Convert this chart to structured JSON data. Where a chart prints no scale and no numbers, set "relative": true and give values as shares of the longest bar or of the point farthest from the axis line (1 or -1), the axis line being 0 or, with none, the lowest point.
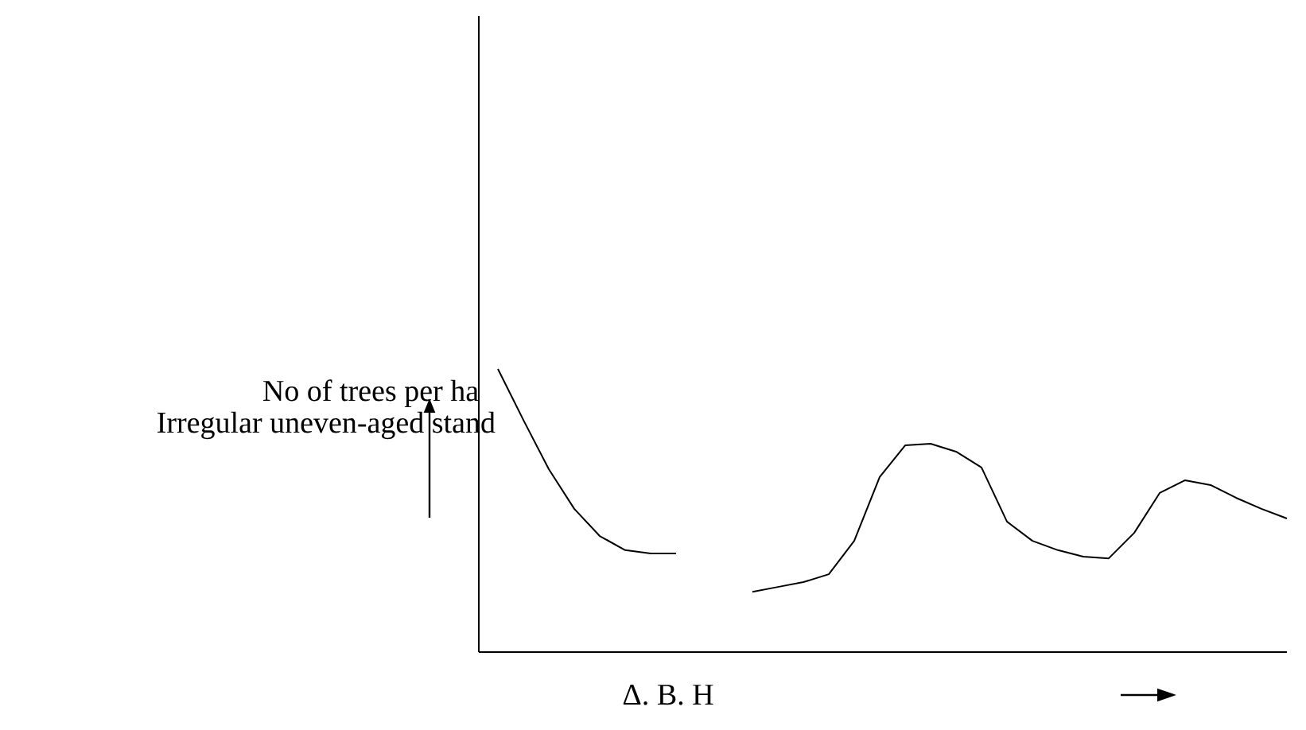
{
  "chart_data": {
    "type": "line",
    "title": "Irregular uneven-aged stand",
    "ylabel": "No of trees per ha",
    "xlabel": "Δ. B. H",
    "relative": true,
    "marker": "none",
    "line_style": "solid",
    "categories": [
      null,
      null,
      null,
      null,
      null,
      null,
      null,
      null,
      null,
      null,
      null,
      null,
      null,
      null,
      null,
      null,
      null,
      null,
      null,
      null,
      null,
      null,
      null,
      null,
      null,
      null,
      null,
      null,
      null,
      null,
      null,
      null
    ],
    "series": [
      {
        "color": "#000000",
        "values": [
          1.0,
          0.82,
          0.646,
          0.506,
          0.41,
          0.36,
          0.348,
          0.348,
          null,
          null,
          null,
          null,
          null,
          null,
          null,
          null,
          null,
          null,
          null,
          null,
          null,
          null,
          null,
          null,
          null,
          null,
          null,
          null,
          null,
          null,
          null,
          null
        ]
      },
      {
        "color": "#000000",
        "values": [
          null,
          null,
          null,
          null,
          null,
          null,
          null,
          null,
          null,
          null,
          0.213,
          0.23,
          0.247,
          0.275,
          0.393,
          0.618,
          0.73,
          0.736,
          0.708,
          0.652,
          0.461,
          0.393,
          0.36,
          0.337,
          0.331,
          0.421,
          0.562,
          0.607,
          0.59,
          0.545,
          0.506,
          0.472
        ]
      }
    ]
  }
}
